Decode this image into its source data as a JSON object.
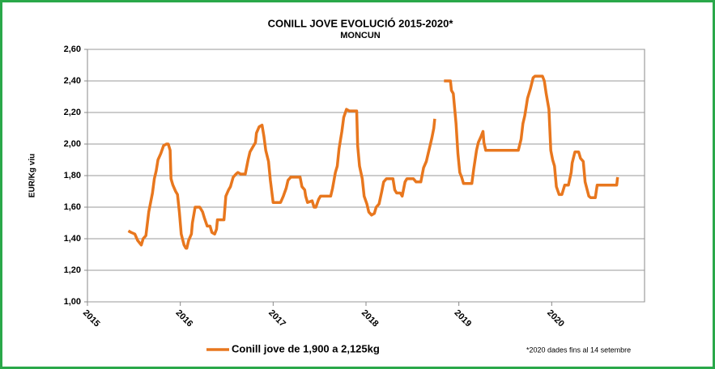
{
  "chart_data": {
    "type": "line",
    "title": "CONILL JOVE  EVOLUCIÓ 2015-2020*",
    "subtitle": "MONCUN",
    "y_label": "EUR/Kg viu",
    "annotation": "*2020 dades fins al 14 setembre",
    "legend": "bottom",
    "grid": true,
    "xlim": [
      2015,
      2021
    ],
    "xticks": [
      2015,
      2016,
      2017,
      2018,
      2019,
      2020
    ],
    "ylim": [
      1,
      2.6
    ],
    "yticks": [
      {
        "value": 1,
        "label": "1,00"
      },
      {
        "value": 1.2,
        "label": "1,20"
      },
      {
        "value": 1.4,
        "label": "1,40"
      },
      {
        "value": 1.6,
        "label": "1,60"
      },
      {
        "value": 1.8,
        "label": "1,80"
      },
      {
        "value": 2,
        "label": "2,00"
      },
      {
        "value": 2.2,
        "label": "2,20"
      },
      {
        "value": 2.4,
        "label": "2,40"
      },
      {
        "value": 2.6,
        "label": "2,60"
      }
    ],
    "x": [
      2015.44,
      2015.47,
      2015.51,
      2015.54,
      2015.58,
      2015.6,
      2015.63,
      2015.66,
      2015.7,
      2015.72,
      2015.74,
      2015.76,
      2015.79,
      2015.82,
      2015.85,
      2015.87,
      2015.89,
      2015.9,
      2015.92,
      2015.95,
      2015.97,
      2015.99,
      2016.01,
      2016.04,
      2016.06,
      2016.07,
      2016.09,
      2016.12,
      2016.13,
      2016.16,
      2016.21,
      2016.24,
      2016.26,
      2016.29,
      2016.32,
      2016.34,
      2016.37,
      2016.39,
      2016.4,
      2016.47,
      2016.49,
      2016.52,
      2016.54,
      2016.57,
      2016.6,
      2016.62,
      2016.65,
      2016.7,
      2016.73,
      2016.75,
      2016.78,
      2016.81,
      2016.82,
      2016.85,
      2016.88,
      2016.9,
      2016.92,
      2016.95,
      2016.97,
      2017.0,
      2017.02,
      2017.08,
      2017.11,
      2017.14,
      2017.16,
      2017.19,
      2017.29,
      2017.31,
      2017.34,
      2017.35,
      2017.37,
      2017.42,
      2017.44,
      2017.46,
      2017.49,
      2017.51,
      2017.62,
      2017.64,
      2017.67,
      2017.69,
      2017.71,
      2017.74,
      2017.76,
      2017.79,
      2017.82,
      2017.9,
      2017.91,
      2017.93,
      2017.96,
      2017.98,
      2018.01,
      2018.03,
      2018.06,
      2018.09,
      2018.11,
      2018.14,
      2018.17,
      2018.19,
      2018.22,
      2018.29,
      2018.31,
      2018.33,
      2018.37,
      2018.39,
      2018.42,
      2018.44,
      2018.51,
      2018.54,
      2018.59,
      2018.62,
      2018.65,
      2018.67,
      2018.69,
      2018.71,
      2018.73,
      2018.74,
      2018.79,
      2018.84,
      2018.91,
      2018.92,
      2018.94,
      2018.97,
      2018.99,
      2019.01,
      2019.03,
      2019.05,
      2019.14,
      2019.16,
      2019.19,
      2019.21,
      2019.24,
      2019.26,
      2019.27,
      2019.29,
      2019.64,
      2019.67,
      2019.69,
      2019.71,
      2019.74,
      2019.77,
      2019.8,
      2019.82,
      2019.9,
      2019.92,
      2019.94,
      2019.97,
      2019.99,
      2020.01,
      2020.03,
      2020.05,
      2020.08,
      2020.11,
      2020.14,
      2020.18,
      2020.21,
      2020.22,
      2020.25,
      2020.29,
      2020.31,
      2020.34,
      2020.36,
      2020.4,
      2020.42,
      2020.47,
      2020.49,
      2020.7,
      2020.71
    ],
    "series": [
      {
        "name": "Conill jove de 1,900 a 2,125kg",
        "color": "#e8771e",
        "values": [
          1.45,
          1.44,
          1.43,
          1.39,
          1.36,
          1.4,
          1.42,
          1.57,
          1.69,
          1.78,
          1.83,
          1.9,
          1.94,
          1.99,
          2.0,
          2.0,
          1.96,
          1.78,
          1.74,
          1.7,
          1.68,
          1.57,
          1.43,
          1.36,
          1.34,
          1.34,
          1.39,
          1.43,
          1.5,
          1.6,
          1.6,
          1.57,
          1.53,
          1.48,
          1.48,
          1.44,
          1.43,
          1.46,
          1.52,
          1.52,
          1.67,
          1.71,
          1.73,
          1.79,
          1.81,
          1.82,
          1.81,
          1.81,
          1.9,
          1.95,
          1.98,
          2.01,
          2.07,
          2.11,
          2.12,
          2.05,
          1.96,
          1.89,
          1.77,
          1.63,
          1.63,
          1.63,
          1.67,
          1.72,
          1.77,
          1.79,
          1.79,
          1.73,
          1.71,
          1.67,
          1.63,
          1.64,
          1.6,
          1.6,
          1.65,
          1.67,
          1.67,
          1.72,
          1.82,
          1.86,
          1.97,
          2.08,
          2.17,
          2.22,
          2.21,
          2.21,
          1.99,
          1.86,
          1.78,
          1.67,
          1.62,
          1.57,
          1.55,
          1.56,
          1.6,
          1.62,
          1.7,
          1.76,
          1.78,
          1.78,
          1.71,
          1.69,
          1.69,
          1.67,
          1.76,
          1.78,
          1.78,
          1.76,
          1.76,
          1.85,
          1.89,
          1.94,
          1.99,
          2.04,
          2.1,
          2.16,
          null,
          2.4,
          2.4,
          2.34,
          2.32,
          2.13,
          1.94,
          1.82,
          1.79,
          1.75,
          1.75,
          1.84,
          1.96,
          2.01,
          2.05,
          2.08,
          2.01,
          1.96,
          1.96,
          2.03,
          2.13,
          2.18,
          2.29,
          2.35,
          2.42,
          2.43,
          2.43,
          2.4,
          2.32,
          2.22,
          1.96,
          1.9,
          1.86,
          1.73,
          1.68,
          1.68,
          1.74,
          1.74,
          1.82,
          1.88,
          1.95,
          1.95,
          1.91,
          1.89,
          1.76,
          1.67,
          1.66,
          1.66,
          1.74,
          1.74,
          1.79
        ]
      }
    ]
  }
}
